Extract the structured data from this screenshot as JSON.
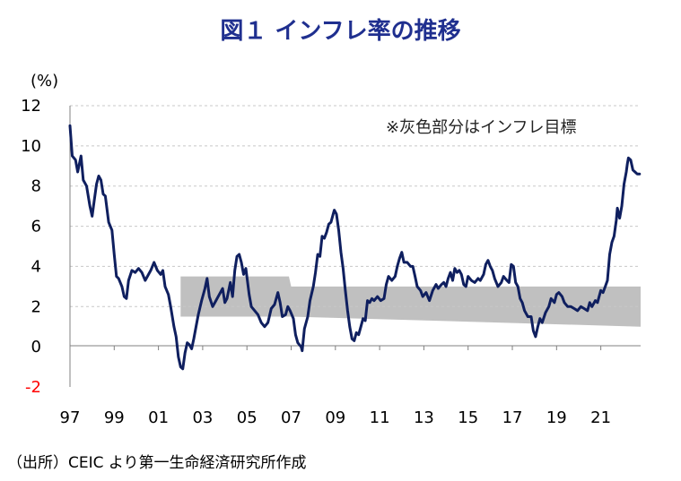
{
  "title": "図１ インフレ率の推移",
  "unit_label": "(%)",
  "source": "（出所）CEIC より第一生命経済研究所作成",
  "chart_data": {
    "type": "line",
    "xlabel": "",
    "ylabel": "",
    "ylim": [
      -2,
      12
    ],
    "y_ticks": [
      "-2",
      "0",
      "2",
      "4",
      "6",
      "8",
      "10",
      "12"
    ],
    "x_tick_labels": [
      "97",
      "99",
      "01",
      "03",
      "05",
      "07",
      "09",
      "11",
      "13",
      "15",
      "17",
      "19",
      "21"
    ],
    "x_tick_years": [
      1997,
      1999,
      2001,
      2003,
      2005,
      2007,
      2009,
      2011,
      2013,
      2015,
      2017,
      2019,
      2021
    ],
    "xlim": [
      1997.0,
      2022.8
    ],
    "grid": "horizontal-dashed",
    "annotation": "※灰色部分はインフレ目標",
    "colors": {
      "line": "#0f1f5f",
      "band": "#c0c0c0",
      "negative_tick": "#ff0000",
      "title": "#1f2f8f"
    },
    "target_band": [
      {
        "x": 2002.0,
        "lower": 1.5,
        "upper": 3.5
      },
      {
        "x": 2006.9,
        "lower": 1.5,
        "upper": 3.5
      },
      {
        "x": 2007.0,
        "lower": 1.5,
        "upper": 3.0
      },
      {
        "x": 2022.8,
        "lower": 1.0,
        "upper": 3.0
      }
    ],
    "series": [
      {
        "points": [
          [
            1997.0,
            11.0
          ],
          [
            1997.1,
            9.5
          ],
          [
            1997.25,
            9.3
          ],
          [
            1997.35,
            8.7
          ],
          [
            1997.5,
            9.5
          ],
          [
            1997.6,
            8.3
          ],
          [
            1997.75,
            8.0
          ],
          [
            1997.9,
            7.0
          ],
          [
            1998.0,
            6.5
          ],
          [
            1998.1,
            7.3
          ],
          [
            1998.2,
            8.1
          ],
          [
            1998.3,
            8.5
          ],
          [
            1998.4,
            8.3
          ],
          [
            1998.5,
            7.6
          ],
          [
            1998.6,
            7.5
          ],
          [
            1998.75,
            6.2
          ],
          [
            1998.9,
            5.8
          ],
          [
            1999.0,
            4.6
          ],
          [
            1999.1,
            3.5
          ],
          [
            1999.2,
            3.4
          ],
          [
            1999.35,
            3.0
          ],
          [
            1999.45,
            2.5
          ],
          [
            1999.55,
            2.4
          ],
          [
            1999.65,
            3.3
          ],
          [
            1999.8,
            3.8
          ],
          [
            1999.95,
            3.7
          ],
          [
            2000.1,
            3.9
          ],
          [
            2000.25,
            3.7
          ],
          [
            2000.4,
            3.3
          ],
          [
            2000.5,
            3.5
          ],
          [
            2000.65,
            3.8
          ],
          [
            2000.8,
            4.2
          ],
          [
            2000.95,
            3.8
          ],
          [
            2001.1,
            3.6
          ],
          [
            2001.2,
            3.8
          ],
          [
            2001.3,
            3.0
          ],
          [
            2001.45,
            2.6
          ],
          [
            2001.55,
            2.0
          ],
          [
            2001.7,
            1.0
          ],
          [
            2001.8,
            0.5
          ],
          [
            2001.9,
            -0.5
          ],
          [
            2002.0,
            -1.0
          ],
          [
            2002.1,
            -1.1
          ],
          [
            2002.2,
            -0.3
          ],
          [
            2002.3,
            0.2
          ],
          [
            2002.4,
            0.1
          ],
          [
            2002.5,
            -0.1
          ],
          [
            2002.6,
            0.4
          ],
          [
            2002.7,
            1.0
          ],
          [
            2002.8,
            1.6
          ],
          [
            2002.95,
            2.3
          ],
          [
            2003.1,
            2.9
          ],
          [
            2003.2,
            3.4
          ],
          [
            2003.3,
            2.5
          ],
          [
            2003.45,
            2.0
          ],
          [
            2003.6,
            2.3
          ],
          [
            2003.75,
            2.6
          ],
          [
            2003.9,
            2.9
          ],
          [
            2004.0,
            2.2
          ],
          [
            2004.1,
            2.4
          ],
          [
            2004.25,
            3.2
          ],
          [
            2004.35,
            2.5
          ],
          [
            2004.45,
            3.8
          ],
          [
            2004.55,
            4.5
          ],
          [
            2004.65,
            4.6
          ],
          [
            2004.75,
            4.2
          ],
          [
            2004.85,
            3.6
          ],
          [
            2004.95,
            3.9
          ],
          [
            2005.1,
            2.6
          ],
          [
            2005.2,
            2.0
          ],
          [
            2005.35,
            1.8
          ],
          [
            2005.5,
            1.6
          ],
          [
            2005.65,
            1.2
          ],
          [
            2005.8,
            1.0
          ],
          [
            2005.95,
            1.2
          ],
          [
            2006.1,
            1.9
          ],
          [
            2006.25,
            2.1
          ],
          [
            2006.4,
            2.7
          ],
          [
            2006.5,
            2.2
          ],
          [
            2006.6,
            1.5
          ],
          [
            2006.75,
            1.6
          ],
          [
            2006.85,
            2.0
          ],
          [
            2006.95,
            1.8
          ],
          [
            2007.1,
            1.4
          ],
          [
            2007.2,
            0.6
          ],
          [
            2007.3,
            0.2
          ],
          [
            2007.45,
            0.0
          ],
          [
            2007.5,
            -0.2
          ],
          [
            2007.6,
            0.9
          ],
          [
            2007.75,
            1.5
          ],
          [
            2007.85,
            2.3
          ],
          [
            2008.0,
            3.0
          ],
          [
            2008.1,
            3.7
          ],
          [
            2008.2,
            4.6
          ],
          [
            2008.3,
            4.5
          ],
          [
            2008.4,
            5.5
          ],
          [
            2008.5,
            5.4
          ],
          [
            2008.6,
            5.7
          ],
          [
            2008.7,
            6.1
          ],
          [
            2008.8,
            6.2
          ],
          [
            2008.9,
            6.6
          ],
          [
            2008.95,
            6.8
          ],
          [
            2009.05,
            6.6
          ],
          [
            2009.15,
            5.8
          ],
          [
            2009.25,
            4.7
          ],
          [
            2009.35,
            3.9
          ],
          [
            2009.45,
            2.8
          ],
          [
            2009.55,
            1.8
          ],
          [
            2009.65,
            1.0
          ],
          [
            2009.75,
            0.4
          ],
          [
            2009.85,
            0.3
          ],
          [
            2009.95,
            0.7
          ],
          [
            2010.05,
            0.6
          ],
          [
            2010.15,
            1.0
          ],
          [
            2010.25,
            1.4
          ],
          [
            2010.35,
            1.3
          ],
          [
            2010.45,
            2.3
          ],
          [
            2010.55,
            2.2
          ],
          [
            2010.65,
            2.4
          ],
          [
            2010.75,
            2.3
          ],
          [
            2010.9,
            2.5
          ],
          [
            2011.05,
            2.3
          ],
          [
            2011.2,
            2.4
          ],
          [
            2011.3,
            3.1
          ],
          [
            2011.4,
            3.5
          ],
          [
            2011.55,
            3.3
          ],
          [
            2011.7,
            3.5
          ],
          [
            2011.8,
            4.0
          ],
          [
            2011.9,
            4.4
          ],
          [
            2012.0,
            4.7
          ],
          [
            2012.1,
            4.2
          ],
          [
            2012.25,
            4.2
          ],
          [
            2012.4,
            4.0
          ],
          [
            2012.5,
            4.0
          ],
          [
            2012.6,
            3.5
          ],
          [
            2012.7,
            3.0
          ],
          [
            2012.85,
            2.8
          ],
          [
            2012.95,
            2.5
          ],
          [
            2013.1,
            2.7
          ],
          [
            2013.25,
            2.3
          ],
          [
            2013.4,
            2.8
          ],
          [
            2013.55,
            3.1
          ],
          [
            2013.65,
            2.9
          ],
          [
            2013.8,
            3.1
          ],
          [
            2013.9,
            3.2
          ],
          [
            2014.0,
            3.0
          ],
          [
            2014.1,
            3.4
          ],
          [
            2014.2,
            3.7
          ],
          [
            2014.3,
            3.3
          ],
          [
            2014.4,
            3.9
          ],
          [
            2014.5,
            3.7
          ],
          [
            2014.6,
            3.8
          ],
          [
            2014.7,
            3.6
          ],
          [
            2014.8,
            3.1
          ],
          [
            2014.9,
            3.0
          ],
          [
            2015.0,
            3.5
          ],
          [
            2015.15,
            3.3
          ],
          [
            2015.3,
            3.2
          ],
          [
            2015.45,
            3.4
          ],
          [
            2015.55,
            3.3
          ],
          [
            2015.7,
            3.6
          ],
          [
            2015.8,
            4.1
          ],
          [
            2015.9,
            4.3
          ],
          [
            2016.0,
            4.0
          ],
          [
            2016.1,
            3.8
          ],
          [
            2016.2,
            3.4
          ],
          [
            2016.35,
            3.0
          ],
          [
            2016.5,
            3.2
          ],
          [
            2016.6,
            3.5
          ],
          [
            2016.75,
            3.3
          ],
          [
            2016.85,
            3.2
          ],
          [
            2016.95,
            4.1
          ],
          [
            2017.05,
            4.0
          ],
          [
            2017.15,
            3.2
          ],
          [
            2017.25,
            3.0
          ],
          [
            2017.35,
            2.4
          ],
          [
            2017.45,
            2.2
          ],
          [
            2017.55,
            1.8
          ],
          [
            2017.7,
            1.5
          ],
          [
            2017.85,
            1.5
          ],
          [
            2017.95,
            0.8
          ],
          [
            2018.05,
            0.5
          ],
          [
            2018.15,
            1.0
          ],
          [
            2018.25,
            1.4
          ],
          [
            2018.35,
            1.2
          ],
          [
            2018.5,
            1.7
          ],
          [
            2018.65,
            2.0
          ],
          [
            2018.75,
            2.4
          ],
          [
            2018.9,
            2.2
          ],
          [
            2019.0,
            2.6
          ],
          [
            2019.1,
            2.7
          ],
          [
            2019.25,
            2.5
          ],
          [
            2019.35,
            2.2
          ],
          [
            2019.5,
            2.0
          ],
          [
            2019.65,
            2.0
          ],
          [
            2019.8,
            1.9
          ],
          [
            2019.95,
            1.8
          ],
          [
            2020.1,
            2.0
          ],
          [
            2020.25,
            1.9
          ],
          [
            2020.4,
            1.8
          ],
          [
            2020.5,
            2.2
          ],
          [
            2020.6,
            2.0
          ],
          [
            2020.75,
            2.3
          ],
          [
            2020.85,
            2.2
          ],
          [
            2021.0,
            2.8
          ],
          [
            2021.1,
            2.7
          ],
          [
            2021.2,
            3.0
          ],
          [
            2021.3,
            3.3
          ],
          [
            2021.4,
            4.6
          ],
          [
            2021.5,
            5.2
          ],
          [
            2021.6,
            5.5
          ],
          [
            2021.7,
            6.3
          ],
          [
            2021.75,
            6.9
          ],
          [
            2021.85,
            6.4
          ],
          [
            2021.95,
            7.0
          ],
          [
            2022.05,
            8.1
          ],
          [
            2022.15,
            8.7
          ],
          [
            2022.2,
            9.1
          ],
          [
            2022.25,
            9.4
          ],
          [
            2022.35,
            9.3
          ],
          [
            2022.45,
            8.8
          ],
          [
            2022.55,
            8.7
          ],
          [
            2022.65,
            8.6
          ],
          [
            2022.75,
            8.6
          ]
        ]
      }
    ]
  }
}
